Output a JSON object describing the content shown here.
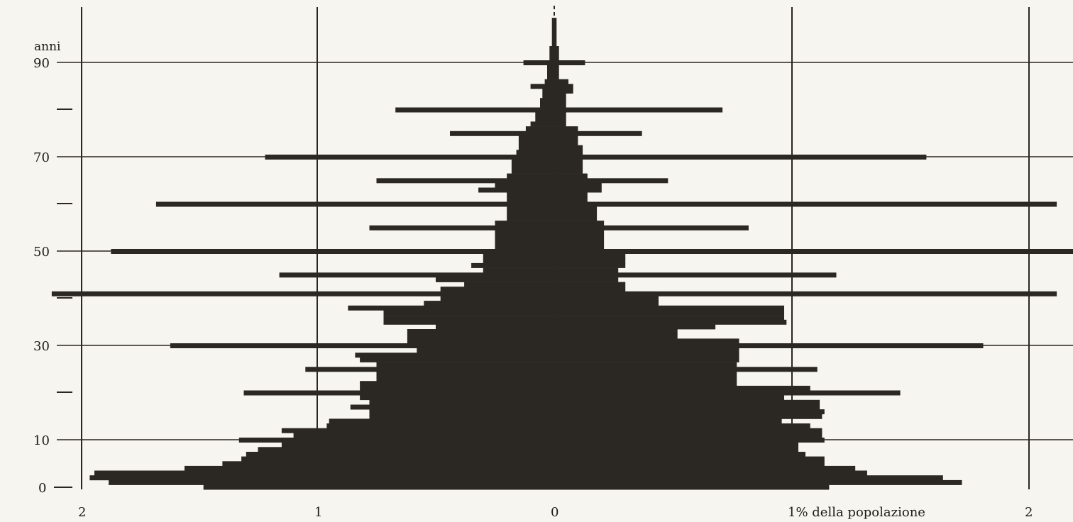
{
  "chart_data": {
    "type": "bar",
    "orientation": "horizontal-pyramid",
    "y_label": "anni",
    "y_tick_labels": [
      "90",
      "70",
      "50",
      "30",
      "10",
      "0"
    ],
    "x_tick_labels": [
      "2",
      "1",
      "0",
      "1% della popolazione",
      "2"
    ],
    "xlim": [
      -2,
      2
    ],
    "ylim": [
      0,
      90
    ],
    "grid": true,
    "bar_color": "#2b2823",
    "series": [
      {
        "side": "left",
        "ages": [
          0,
          1,
          2,
          3,
          4,
          5,
          6,
          7,
          8,
          9,
          10,
          11,
          12,
          13,
          14,
          15,
          16,
          17,
          18,
          19,
          20,
          21,
          22,
          23,
          24,
          25,
          26,
          27,
          28,
          29,
          30,
          31,
          32,
          33,
          34,
          35,
          36,
          37,
          38,
          39,
          40,
          41,
          42,
          43,
          44,
          45,
          46,
          47,
          48,
          49,
          50,
          51,
          52,
          53,
          54,
          55,
          56,
          57,
          58,
          59,
          60,
          61,
          62,
          63,
          64,
          65,
          66,
          67,
          68,
          69,
          70,
          71,
          72,
          73,
          74,
          75,
          76,
          77,
          78,
          79,
          80,
          81,
          82,
          83,
          84,
          85,
          86,
          87,
          88,
          89,
          90,
          91,
          92,
          93,
          94,
          95,
          96,
          97,
          98,
          99
        ],
        "values": [
          1.48,
          1.88,
          1.96,
          1.94,
          1.56,
          1.4,
          1.32,
          1.3,
          1.25,
          1.15,
          1.33,
          1.1,
          1.15,
          0.96,
          0.95,
          0.78,
          0.78,
          0.86,
          0.78,
          0.82,
          1.31,
          0.82,
          0.82,
          0.75,
          0.75,
          1.05,
          0.75,
          0.82,
          0.84,
          0.58,
          1.62,
          0.62,
          0.62,
          0.62,
          0.5,
          0.72,
          0.72,
          0.72,
          0.87,
          0.55,
          0.48,
          2.12,
          0.48,
          0.38,
          0.5,
          1.16,
          0.3,
          0.35,
          0.3,
          0.3,
          1.87,
          0.25,
          0.25,
          0.25,
          0.25,
          0.78,
          0.25,
          0.2,
          0.2,
          0.2,
          1.68,
          0.2,
          0.2,
          0.32,
          0.25,
          0.75,
          0.2,
          0.18,
          0.18,
          0.18,
          1.22,
          0.16,
          0.15,
          0.15,
          0.15,
          0.44,
          0.12,
          0.1,
          0.08,
          0.08,
          0.67,
          0.06,
          0.06,
          0.05,
          0.05,
          0.1,
          0.04,
          0.03,
          0.03,
          0.03,
          0.13,
          0.02,
          0.02,
          0.02,
          0.01,
          0.01,
          0.01,
          0.01,
          0.01,
          0.01
        ]
      },
      {
        "side": "right",
        "ages": [
          0,
          1,
          2,
          3,
          4,
          5,
          6,
          7,
          8,
          9,
          10,
          11,
          12,
          13,
          14,
          15,
          16,
          17,
          18,
          19,
          20,
          21,
          22,
          23,
          24,
          25,
          26,
          27,
          28,
          29,
          30,
          31,
          32,
          33,
          34,
          35,
          36,
          37,
          38,
          39,
          40,
          41,
          42,
          43,
          44,
          45,
          46,
          47,
          48,
          49,
          50,
          51,
          52,
          53,
          54,
          55,
          56,
          57,
          58,
          59,
          60,
          61,
          62,
          63,
          64,
          65,
          66,
          67,
          68,
          69,
          70,
          71,
          72,
          73,
          74,
          75,
          76,
          77,
          78,
          79,
          80,
          81,
          82,
          83,
          84,
          85,
          86,
          87,
          88,
          89,
          90,
          91,
          92,
          93,
          94,
          95,
          96,
          97,
          98,
          99
        ],
        "values": [
          1.16,
          1.72,
          1.64,
          1.32,
          1.27,
          1.14,
          1.14,
          1.06,
          1.03,
          1.03,
          1.14,
          1.13,
          1.13,
          1.08,
          0.96,
          1.13,
          1.14,
          1.12,
          1.12,
          0.97,
          1.46,
          1.08,
          0.77,
          0.77,
          0.77,
          1.11,
          0.77,
          0.78,
          0.78,
          0.78,
          1.81,
          0.78,
          0.52,
          0.52,
          0.68,
          0.98,
          0.97,
          0.97,
          0.97,
          0.44,
          0.44,
          2.12,
          0.3,
          0.3,
          0.27,
          1.19,
          0.27,
          0.3,
          0.3,
          0.3,
          2.2,
          0.21,
          0.21,
          0.21,
          0.21,
          0.82,
          0.21,
          0.18,
          0.18,
          0.18,
          2.12,
          0.14,
          0.14,
          0.2,
          0.2,
          0.48,
          0.14,
          0.12,
          0.12,
          0.12,
          1.57,
          0.12,
          0.12,
          0.1,
          0.1,
          0.37,
          0.1,
          0.05,
          0.05,
          0.05,
          0.71,
          0.05,
          0.05,
          0.05,
          0.08,
          0.08,
          0.06,
          0.02,
          0.02,
          0.02,
          0.13,
          0.02,
          0.02,
          0.02,
          0.01,
          0.01,
          0.01,
          0.01,
          0.01,
          0.01
        ]
      }
    ]
  }
}
